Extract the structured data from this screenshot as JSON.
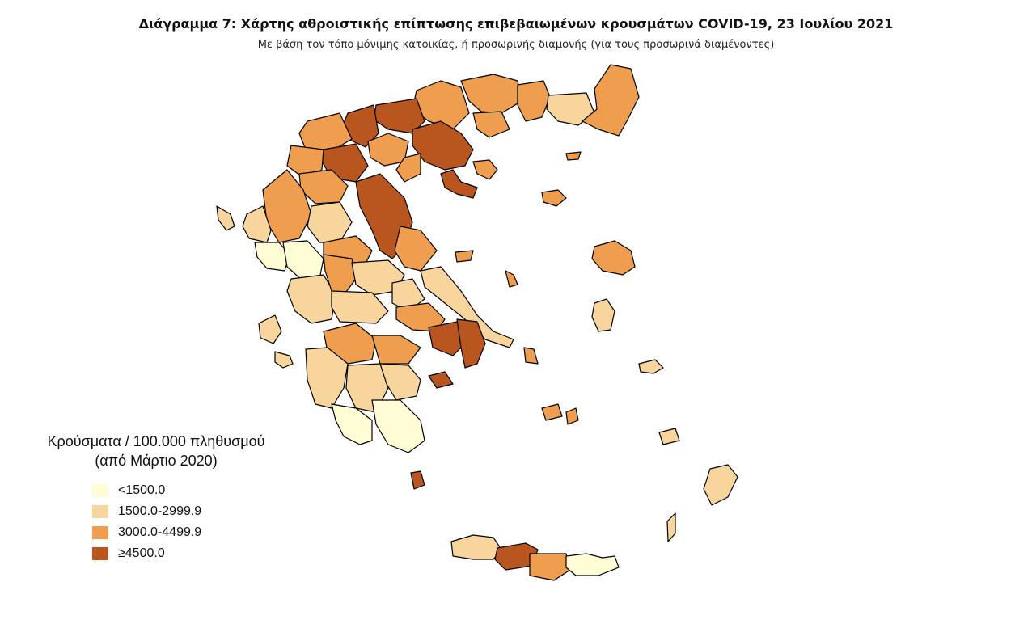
{
  "title": "Διάγραμμα 7: Χάρτης αθροιστικής επίπτωσης επιβεβαιωμένων κρουσμάτων COVID-19, 23 Ιουλίου 2021",
  "subtitle": "Με βάση τον τόπο μόνιμης κατοικίας, ή προσωρινής διαμονής (για τους προσωρινά διαμένοντες)",
  "legend": {
    "title_line1": "Κρούσματα / 100.000 πληθυσμού",
    "title_line2": "(από Μάρτιο 2020)",
    "items": [
      {
        "label": "<1500.0",
        "color": "#fefdd6"
      },
      {
        "label": "1500.0-2999.9",
        "color": "#f8d59c"
      },
      {
        "label": "3000.0-4499.9",
        "color": "#ee9e4e"
      },
      {
        "label": "≥4500.0",
        "color": "#b9551f"
      }
    ]
  }
}
